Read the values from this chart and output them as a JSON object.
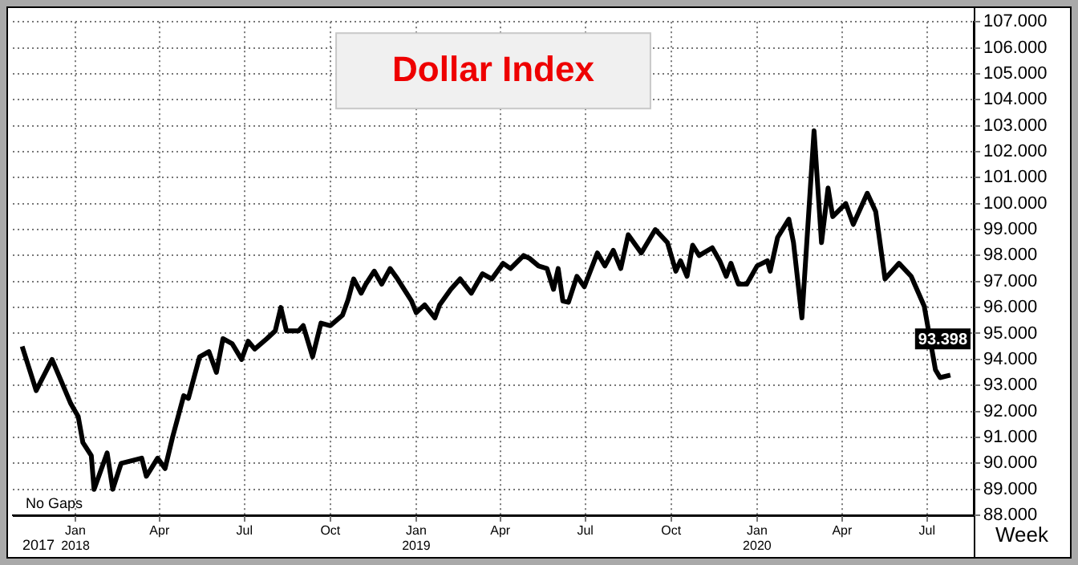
{
  "chart_data": {
    "type": "line",
    "title": "Dollar Index",
    "xlabel": "Week",
    "x": [
      "2017-11-05",
      "2017-11-20",
      "2017-12-07",
      "2017-12-27",
      "2018-01-04",
      "2018-01-09",
      "2018-01-18",
      "2018-01-21",
      "2018-02-04",
      "2018-02-10",
      "2018-02-19",
      "2018-03-13",
      "2018-03-18",
      "2018-03-30",
      "2018-04-07",
      "2018-04-15",
      "2018-04-27",
      "2018-05-02",
      "2018-05-14",
      "2018-05-24",
      "2018-06-01",
      "2018-06-08",
      "2018-06-18",
      "2018-06-28",
      "2018-07-05",
      "2018-07-12",
      "2018-07-25",
      "2018-08-03",
      "2018-08-09",
      "2018-08-15",
      "2018-08-28",
      "2018-09-02",
      "2018-09-12",
      "2018-09-21",
      "2018-10-01",
      "2018-10-14",
      "2018-10-20",
      "2018-10-26",
      "2018-11-03",
      "2018-11-08",
      "2018-11-17",
      "2018-11-25",
      "2018-12-04",
      "2018-12-12",
      "2018-12-27",
      "2019-01-01",
      "2019-01-10",
      "2019-01-21",
      "2019-01-26",
      "2019-02-07",
      "2019-02-17",
      "2019-03-01",
      "2019-03-13",
      "2019-03-23",
      "2019-04-04",
      "2019-04-12",
      "2019-04-26",
      "2019-05-02",
      "2019-05-12",
      "2019-05-21",
      "2019-05-28",
      "2019-06-02",
      "2019-06-07",
      "2019-06-13",
      "2019-06-22",
      "2019-06-30",
      "2019-07-14",
      "2019-07-22",
      "2019-07-31",
      "2019-08-08",
      "2019-08-16",
      "2019-08-30",
      "2019-09-14",
      "2019-09-27",
      "2019-10-06",
      "2019-10-11",
      "2019-10-18",
      "2019-10-24",
      "2019-10-31",
      "2019-11-14",
      "2019-11-22",
      "2019-11-29",
      "2019-12-04",
      "2019-12-12",
      "2019-12-21",
      "2020-01-01",
      "2020-01-12",
      "2020-01-15",
      "2020-01-23",
      "2020-02-04",
      "2020-02-09",
      "2020-02-18",
      "2020-03-02",
      "2020-03-10",
      "2020-03-17",
      "2020-03-22",
      "2020-04-05",
      "2020-04-13",
      "2020-04-28",
      "2020-05-07",
      "2020-05-17",
      "2020-06-01",
      "2020-06-14",
      "2020-06-28",
      "2020-07-10",
      "2020-07-15",
      "2020-07-26"
    ],
    "series": [
      {
        "color": "#000000",
        "values": [
          94.5,
          92.8,
          94.0,
          92.3,
          91.8,
          90.8,
          90.3,
          89.0,
          90.4,
          89.0,
          90.0,
          90.2,
          89.5,
          90.2,
          89.8,
          91.0,
          92.6,
          92.5,
          94.1,
          94.3,
          93.5,
          94.8,
          94.6,
          94.0,
          94.7,
          94.4,
          94.8,
          95.1,
          96.0,
          95.1,
          95.1,
          95.3,
          94.1,
          95.4,
          95.3,
          95.7,
          96.3,
          97.1,
          96.55,
          96.9,
          97.4,
          96.9,
          97.5,
          97.1,
          96.25,
          95.8,
          96.1,
          95.6,
          96.1,
          96.7,
          97.1,
          96.55,
          97.3,
          97.1,
          97.7,
          97.5,
          98.0,
          97.9,
          97.6,
          97.5,
          96.7,
          97.5,
          96.25,
          96.2,
          97.2,
          96.8,
          98.1,
          97.6,
          98.2,
          97.5,
          98.8,
          98.1,
          99.0,
          98.5,
          97.4,
          97.8,
          97.2,
          98.4,
          98.0,
          98.3,
          97.8,
          97.2,
          97.7,
          96.9,
          96.9,
          97.6,
          97.8,
          97.4,
          98.7,
          99.4,
          98.5,
          95.6,
          102.8,
          98.5,
          100.6,
          99.5,
          100.0,
          99.2,
          100.4,
          99.7,
          97.1,
          97.7,
          97.2,
          96.05,
          93.6,
          93.3,
          93.398
        ]
      }
    ],
    "xlim": [
      "2017-10-26",
      "2020-08-20"
    ],
    "xticks": [
      {
        "value": "2018-01-01",
        "label": "Jan\n2018"
      },
      {
        "value": "2018-04-01",
        "label": "Apr"
      },
      {
        "value": "2018-07-01",
        "label": "Jul"
      },
      {
        "value": "2018-10-01",
        "label": "Oct"
      },
      {
        "value": "2019-01-01",
        "label": "Jan\n2019"
      },
      {
        "value": "2019-04-01",
        "label": "Apr"
      },
      {
        "value": "2019-07-01",
        "label": "Jul"
      },
      {
        "value": "2019-10-01",
        "label": "Oct"
      },
      {
        "value": "2020-01-01",
        "label": "Jan\n2020"
      },
      {
        "value": "2020-04-01",
        "label": "Apr"
      },
      {
        "value": "2020-07-01",
        "label": "Jul"
      }
    ],
    "ylim": [
      88,
      107
    ],
    "yticks": [
      {
        "value": 88,
        "label": "88.000"
      },
      {
        "value": 89,
        "label": "89.000"
      },
      {
        "value": 90,
        "label": "90.000"
      },
      {
        "value": 91,
        "label": "91.000"
      },
      {
        "value": 92,
        "label": "92.000"
      },
      {
        "value": 93,
        "label": "93.000"
      },
      {
        "value": 94,
        "label": "94.000"
      },
      {
        "value": 95,
        "label": "95.000"
      },
      {
        "value": 96,
        "label": "96.000"
      },
      {
        "value": 97,
        "label": "97.000"
      },
      {
        "value": 98,
        "label": "98.000"
      },
      {
        "value": 99,
        "label": "99.000"
      },
      {
        "value": 100,
        "label": "100.000"
      },
      {
        "value": 101,
        "label": "101.000"
      },
      {
        "value": 102,
        "label": "102.000"
      },
      {
        "value": 103,
        "label": "103.000"
      },
      {
        "value": 104,
        "label": "104.000"
      },
      {
        "value": 105,
        "label": "105.000"
      },
      {
        "value": 106,
        "label": "106.000"
      },
      {
        "value": 107,
        "label": "107.000"
      }
    ],
    "annotations": [
      "No Gaps",
      "2017",
      {
        "text": "93.398",
        "x": "2020-07-26",
        "y": 93.398
      }
    ],
    "grid": true,
    "legend": false,
    "marker": "none",
    "line_style": "solid"
  }
}
